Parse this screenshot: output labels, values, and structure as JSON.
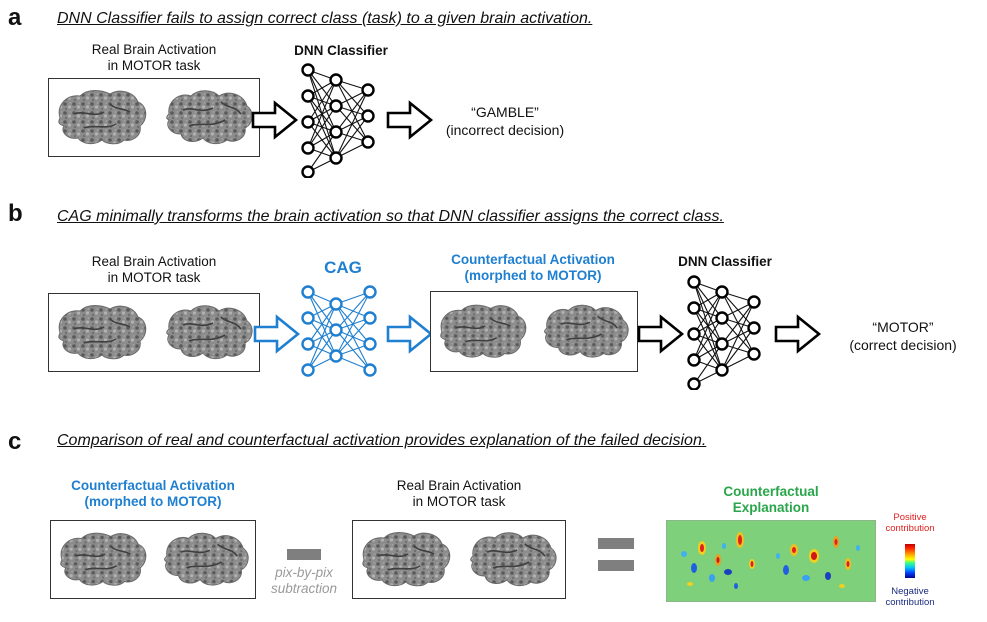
{
  "panel_a": {
    "letter": "a",
    "headline": "DNN Classifier fails to assign correct class (task) to a given brain activation.",
    "input_label_line1": "Real Brain Activation",
    "input_label_line2": "in MOTOR task",
    "classifier_label": "DNN Classifier",
    "output_line1": "“GAMBLE”",
    "output_line2": "(incorrect decision)"
  },
  "panel_b": {
    "letter": "b",
    "headline": "CAG minimally transforms the brain activation so that DNN classifier assigns the correct class.",
    "input_label_line1": "Real Brain Activation",
    "input_label_line2": "in MOTOR task",
    "generator_label": "CAG",
    "counterfactual_label_line1": "Counterfactual Activation",
    "counterfactual_label_line2": "(morphed to MOTOR)",
    "classifier_label": "DNN Classifier",
    "output_line1": "“MOTOR”",
    "output_line2": "(correct decision)"
  },
  "panel_c": {
    "letter": "c",
    "headline": "Comparison of real and counterfactual activation provides explanation of the failed decision.",
    "counterfactual_label_line1": "Counterfactual Activation",
    "counterfactual_label_line2": "(morphed to MOTOR)",
    "real_label_line1": "Real Brain Activation",
    "real_label_line2": "in MOTOR task",
    "subtraction_line1": "pix-by-pix",
    "subtraction_line2": "subtraction",
    "explanation_line1": "Counterfactual",
    "explanation_line2": "Explanation",
    "positive_line1": "Positive",
    "positive_line2": "contribution",
    "negative_line1": "Negative",
    "negative_line2": "contribution"
  },
  "colors": {
    "accent_blue": "#1f7fd0",
    "accent_green": "#2aa64a",
    "positive_red": "#e02020",
    "negative_navy": "#1a2b80",
    "map_background": "#7fd07a"
  }
}
